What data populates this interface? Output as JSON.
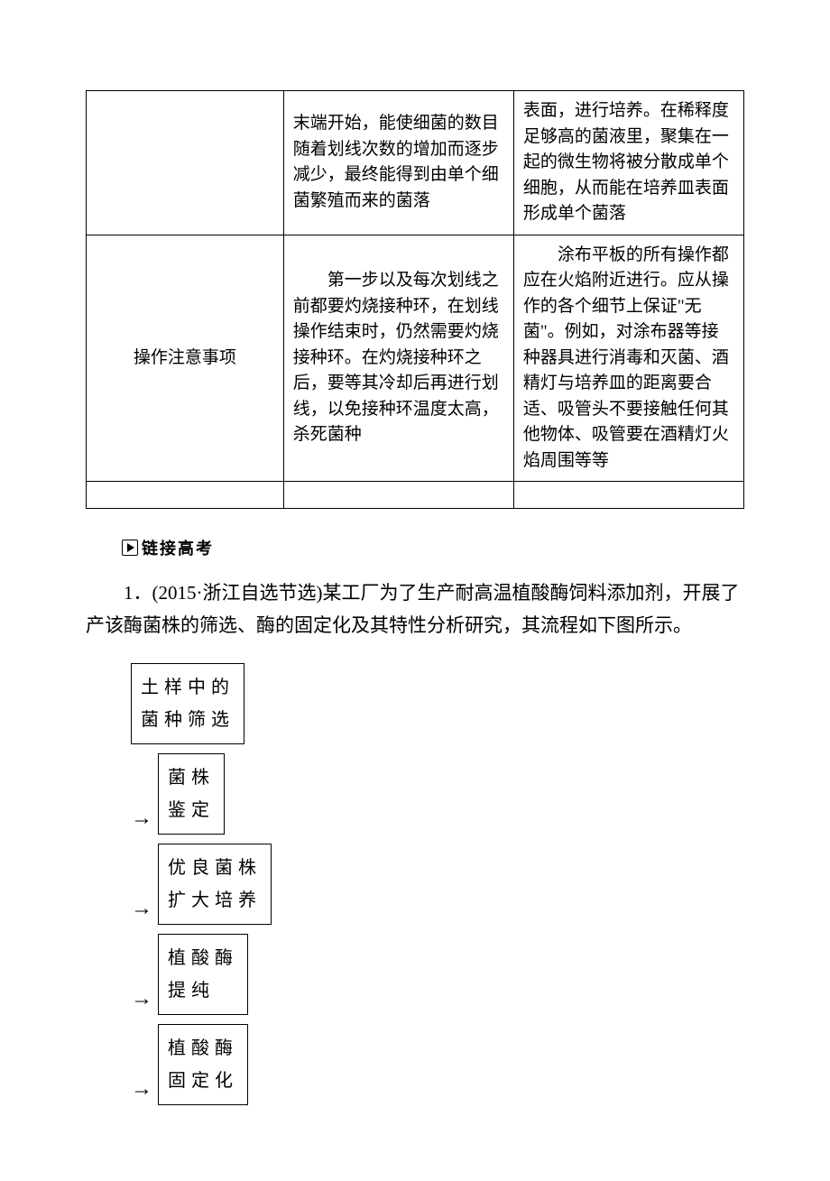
{
  "table": {
    "rows": [
      {
        "col1": "",
        "col2": "末端开始，能使细菌的数目随着划线次数的增加而逐步减少，最终能得到由单个细菌繁殖而来的菌落",
        "col3": "表面，进行培养。在稀释度足够高的菌液里，聚集在一起的微生物将被分散成单个细胞，从而能在培养皿表面形成单个菌落"
      },
      {
        "col1": "操作注意事项",
        "col2": "　　第一步以及每次划线之前都要灼烧接种环，在划线操作结束时，仍然需要灼烧接种环。在灼烧接种环之后，要等其冷却后再进行划线，以免接种环温度太高，杀死菌种",
        "col3": "　　涂布平板的所有操作都应在火焰附近进行。应从操作的各个细节上保证\"无菌\"。例如，对涂布器等接种器具进行消毒和灭菌、酒精灯与培养皿的距离要合适、吸管头不要接触任何其他物体、吸管要在酒精灯火焰周围等等"
      }
    ]
  },
  "section_header": "链接高考",
  "question": {
    "number": "1．",
    "source": "(2015·浙江自选节选)",
    "text": "某工厂为了生产耐高温植酸酶饲料添加剂，开展了产该酶菌株的筛选、酶的固定化及其特性分析研究，其流程如下图所示。"
  },
  "flowchart": {
    "boxes": [
      {
        "lines": [
          "土样中的",
          "菌种筛选"
        ],
        "has_arrow": false
      },
      {
        "lines": [
          "菌株",
          "鉴定"
        ],
        "has_arrow": true
      },
      {
        "lines": [
          "优良菌株",
          "扩大培养"
        ],
        "has_arrow": true
      },
      {
        "lines": [
          "植酸酶",
          "提纯"
        ],
        "has_arrow": true
      },
      {
        "lines": [
          "植酸酶",
          "固定化"
        ],
        "has_arrow": true
      }
    ]
  },
  "colors": {
    "background": "#ffffff",
    "border": "#000000",
    "text": "#000000"
  }
}
